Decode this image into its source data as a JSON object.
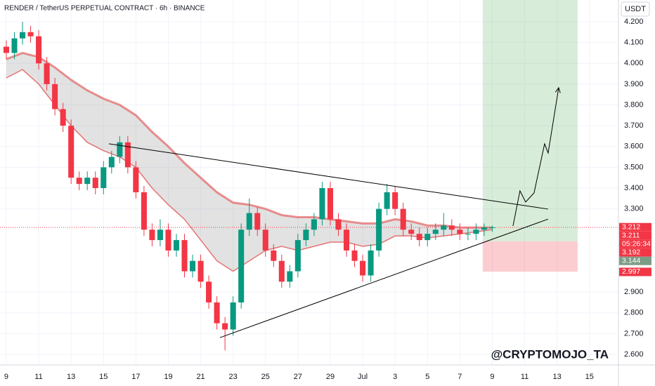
{
  "chart_data": {
    "type": "candlestick",
    "title": "RENDER / TetherUS PERPETUAL CONTRACT · 6h · BINANCE",
    "watermark": "@CRYPTOMOJO_TA",
    "currency": "USDT",
    "up_color": "#089981",
    "down_color": "#f23645",
    "x": [
      0,
      0.5,
      1,
      1.5,
      2,
      2.5,
      3,
      3.5,
      4,
      4.5,
      5,
      5.5,
      6,
      6.5,
      7,
      7.5,
      8,
      8.5,
      9,
      9.5,
      10,
      10.5,
      11,
      11.5,
      12,
      12.5,
      13,
      13.5,
      14,
      14.5,
      15,
      15.5,
      16,
      16.5,
      17,
      17.5,
      18,
      18.5,
      19,
      19.5,
      20,
      20.5,
      21,
      21.5,
      22,
      22.5,
      23,
      23.5,
      24,
      24.5,
      25,
      25.5,
      26,
      26.5,
      27,
      27.5,
      28,
      28.5,
      29,
      29.5,
      30
    ],
    "open": [
      4.08,
      4.05,
      4.12,
      4.15,
      4.13,
      4.0,
      3.9,
      3.78,
      3.7,
      3.45,
      3.42,
      3.45,
      3.4,
      3.5,
      3.55,
      3.62,
      3.5,
      3.38,
      3.2,
      3.15,
      3.2,
      3.1,
      3.15,
      3.0,
      3.05,
      2.95,
      2.85,
      2.75,
      2.72,
      2.85,
      3.2,
      3.28,
      3.2,
      3.1,
      3.05,
      2.95,
      3.0,
      3.15,
      3.2,
      3.25,
      3.4,
      3.25,
      3.2,
      3.1,
      3.05,
      2.98,
      3.1,
      3.3,
      3.38,
      3.3,
      3.2,
      3.18,
      3.15,
      3.18,
      3.2,
      3.22,
      3.2,
      3.18,
      3.18,
      3.2,
      3.21
    ],
    "high": [
      4.11,
      4.15,
      4.2,
      4.18,
      4.16,
      4.03,
      3.93,
      3.81,
      3.73,
      3.48,
      3.48,
      3.48,
      3.53,
      3.58,
      3.65,
      3.65,
      3.53,
      3.41,
      3.23,
      3.25,
      3.23,
      3.18,
      3.18,
      3.08,
      3.08,
      2.98,
      2.88,
      2.78,
      2.88,
      3.23,
      3.35,
      3.31,
      3.23,
      3.13,
      3.08,
      3.03,
      3.18,
      3.23,
      3.28,
      3.43,
      3.43,
      3.28,
      3.23,
      3.13,
      3.08,
      3.13,
      3.33,
      3.42,
      3.41,
      3.33,
      3.23,
      3.21,
      3.21,
      3.23,
      3.28,
      3.25,
      3.23,
      3.21,
      3.23,
      3.23,
      3.22
    ],
    "low": [
      4.02,
      4.02,
      4.09,
      4.1,
      3.97,
      3.87,
      3.75,
      3.67,
      3.42,
      3.39,
      3.39,
      3.37,
      3.37,
      3.47,
      3.52,
      3.47,
      3.35,
      3.17,
      3.12,
      3.12,
      3.07,
      3.07,
      2.97,
      2.97,
      2.92,
      2.82,
      2.72,
      2.62,
      2.69,
      2.82,
      3.17,
      3.17,
      3.07,
      3.02,
      2.92,
      2.92,
      2.97,
      3.12,
      3.17,
      3.22,
      3.22,
      3.17,
      3.07,
      3.02,
      2.95,
      2.95,
      3.07,
      3.27,
      3.27,
      3.17,
      3.15,
      3.12,
      3.12,
      3.15,
      3.17,
      3.17,
      3.15,
      3.15,
      3.15,
      3.17,
      3.19
    ],
    "close": [
      4.05,
      4.12,
      4.15,
      4.13,
      4.0,
      3.9,
      3.78,
      3.7,
      3.45,
      3.42,
      3.45,
      3.4,
      3.5,
      3.55,
      3.62,
      3.5,
      3.38,
      3.2,
      3.15,
      3.2,
      3.1,
      3.15,
      3.0,
      3.05,
      2.95,
      2.85,
      2.75,
      2.72,
      2.85,
      3.2,
      3.28,
      3.2,
      3.1,
      3.05,
      2.95,
      3.0,
      3.15,
      3.2,
      3.25,
      3.4,
      3.25,
      3.2,
      3.1,
      3.05,
      2.98,
      3.1,
      3.3,
      3.38,
      3.3,
      3.2,
      3.18,
      3.15,
      3.18,
      3.2,
      3.22,
      3.2,
      3.18,
      3.18,
      3.2,
      3.21,
      3.211
    ],
    "band": {
      "color": "#e57373",
      "fill": "rgba(150,150,150,0.28)",
      "x": [
        0,
        1,
        2,
        3,
        4,
        5,
        6,
        7,
        8,
        9,
        10,
        11,
        12,
        13,
        14,
        15,
        16,
        17,
        18,
        19,
        20,
        21,
        22,
        23,
        24,
        25,
        26,
        27,
        28,
        29,
        30
      ],
      "upper": [
        4.02,
        4.05,
        4.03,
        3.98,
        3.92,
        3.87,
        3.83,
        3.8,
        3.75,
        3.67,
        3.6,
        3.52,
        3.45,
        3.38,
        3.33,
        3.32,
        3.3,
        3.27,
        3.26,
        3.26,
        3.25,
        3.24,
        3.23,
        3.23,
        3.25,
        3.24,
        3.22,
        3.22,
        3.21,
        3.21,
        3.21
      ],
      "lower": [
        3.93,
        3.97,
        3.9,
        3.8,
        3.7,
        3.62,
        3.58,
        3.55,
        3.5,
        3.4,
        3.32,
        3.25,
        3.15,
        3.05,
        3.0,
        3.05,
        3.1,
        3.12,
        3.1,
        3.12,
        3.14,
        3.14,
        3.12,
        3.13,
        3.17,
        3.17,
        3.16,
        3.17,
        3.18,
        3.19,
        3.2
      ]
    },
    "zones": [
      {
        "x": [
          29.41,
          35.27
        ],
        "from": 3.144,
        "to": 4.3046,
        "color": "rgba(76,175,80,0.22)"
      },
      {
        "x": [
          29.41,
          35.27
        ],
        "from": 2.998,
        "to": 3.144,
        "color": "rgba(242,54,69,0.25)"
      }
    ],
    "lines": [
      {
        "x": [
          6.33,
          33.45
        ],
        "y": [
          3.613,
          3.299
        ],
        "color": "#000000"
      },
      {
        "x": [
          13.19,
          33.45
        ],
        "y": [
          2.681,
          3.251
        ],
        "color": "#000000"
      }
    ],
    "projection": {
      "x": [
        31.28,
        31.71,
        32.06,
        32.58,
        33.23,
        33.45,
        34.1
      ],
      "y": [
        3.218,
        3.387,
        3.333,
        3.377,
        3.613,
        3.569,
        3.883
      ],
      "color": "#000000"
    },
    "last_price": 3.211,
    "price_tags": [
      {
        "value": 3.212,
        "label": "3.212",
        "color": "#f23645"
      },
      {
        "value": 3.211,
        "label": "3.211",
        "color": "#f23645",
        "sub": "05:26:34"
      },
      {
        "value": 3.192,
        "label": "3.192",
        "color": "#f23645"
      },
      {
        "value": 3.144,
        "label": "3.144",
        "color": "#7d9c86"
      },
      {
        "value": 2.997,
        "label": "2.997",
        "color": "#f23645"
      }
    ],
    "xlim": [
      -0.39,
      37.79
    ],
    "ylim": [
      2.5495,
      4.3046
    ],
    "xticks": [
      {
        "value": 0,
        "label": "9"
      },
      {
        "value": 2,
        "label": "11"
      },
      {
        "value": 4,
        "label": "13"
      },
      {
        "value": 6,
        "label": "15"
      },
      {
        "value": 8,
        "label": "17"
      },
      {
        "value": 10,
        "label": "19"
      },
      {
        "value": 12,
        "label": "21"
      },
      {
        "value": 14,
        "label": "23"
      },
      {
        "value": 16,
        "label": "25"
      },
      {
        "value": 18,
        "label": "27"
      },
      {
        "value": 20,
        "label": "29"
      },
      {
        "value": 22,
        "label": "Jul"
      },
      {
        "value": 24,
        "label": "3"
      },
      {
        "value": 26,
        "label": "5"
      },
      {
        "value": 28,
        "label": "7"
      },
      {
        "value": 30,
        "label": "9"
      },
      {
        "value": 32,
        "label": "11"
      },
      {
        "value": 34,
        "label": "13"
      },
      {
        "value": 36,
        "label": "15"
      }
    ],
    "yticks": [
      {
        "value": 4.2,
        "label": "4.200"
      },
      {
        "value": 4.1,
        "label": "4.100"
      },
      {
        "value": 4.0,
        "label": "4.000"
      },
      {
        "value": 3.9,
        "label": "3.900"
      },
      {
        "value": 3.8,
        "label": "3.800"
      },
      {
        "value": 3.7,
        "label": "3.700"
      },
      {
        "value": 3.6,
        "label": "3.600"
      },
      {
        "value": 3.5,
        "label": "3.500"
      },
      {
        "value": 3.4,
        "label": "3.400"
      },
      {
        "value": 3.3,
        "label": "3.300"
      },
      {
        "value": 2.9,
        "label": "2.900"
      },
      {
        "value": 2.8,
        "label": "2.800"
      },
      {
        "value": 2.7,
        "label": "2.700"
      },
      {
        "value": 2.6,
        "label": "2.600"
      }
    ],
    "grid": true
  }
}
